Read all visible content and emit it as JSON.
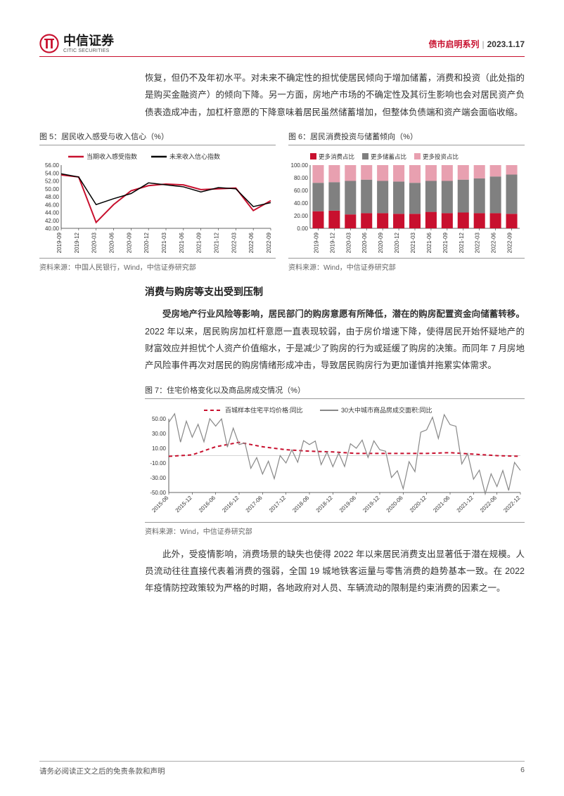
{
  "header": {
    "logo_cn": "中信证券",
    "logo_en": "CITIC SECURITIES",
    "series": "债市启明系列",
    "date": "2023.1.17"
  },
  "para1": "恢复，但仍不及年初水平。对未来不确定性的担忧使居民倾向于增加储蓄，消费和投资（此处指的是购买金融资产）的倾向下降。另一方面，房地产市场的不确定性及其衍生影响也会对居民资产负债表造成冲击，加杠杆意愿的下降意味着居民虽然储蓄增加，但整体负债端和资产端会面临收缩。",
  "chart5": {
    "title": "图 5：居民收入感受与收入信心（%）",
    "type": "line",
    "legend": [
      "当期收入感受指数",
      "未来收入信心指数"
    ],
    "legend_colors": [
      "#c8102e",
      "#000000"
    ],
    "categories": [
      "2019-09",
      "2019-12",
      "2020-03",
      "2020-06",
      "2020-09",
      "2020-12",
      "2021-03",
      "2021-06",
      "2021-09",
      "2021-12",
      "2022-03",
      "2022-06",
      "2022-09"
    ],
    "ylim": [
      40,
      56
    ],
    "ytick_step": 2,
    "series": [
      {
        "color": "#c8102e",
        "width": 2,
        "values": [
          53.5,
          53.0,
          41.5,
          46.0,
          49.5,
          50.8,
          51.2,
          51.0,
          49.8,
          50.0,
          50.2,
          44.5,
          47.0
        ]
      },
      {
        "color": "#000000",
        "width": 1.5,
        "values": [
          53.8,
          53.0,
          46.0,
          47.5,
          48.8,
          51.5,
          51.0,
          50.5,
          49.2,
          50.3,
          50.0,
          45.5,
          46.5
        ]
      }
    ],
    "background": "#ffffff",
    "axis_fontsize": 8,
    "source": "资料来源：中国人民银行，Wind，中信证券研究部"
  },
  "chart6": {
    "title": "图 6：居民消费投资与储蓄倾向（%）",
    "type": "stacked-bar",
    "legend": [
      "更多消费占比",
      "更多储蓄占比",
      "更多投资占比"
    ],
    "legend_colors": [
      "#c8102e",
      "#808080",
      "#e8a0b0"
    ],
    "categories": [
      "2019-09",
      "2019-12",
      "2020-03",
      "2020-06",
      "2020-09",
      "2020-12",
      "2021-03",
      "2021-06",
      "2021-09",
      "2021-12",
      "2022-03",
      "2022-06",
      "2022-09"
    ],
    "ylim": [
      0,
      100
    ],
    "ytick_step": 20,
    "stacks": [
      {
        "color": "#c8102e",
        "values": [
          27,
          28,
          22,
          24,
          24,
          23,
          23,
          26,
          24,
          25,
          24,
          24,
          23
        ]
      },
      {
        "color": "#808080",
        "values": [
          45,
          45,
          53,
          53,
          51,
          51,
          49,
          49,
          51,
          52,
          55,
          58,
          62
        ]
      },
      {
        "color": "#e8a0b0",
        "values": [
          28,
          27,
          25,
          23,
          25,
          26,
          28,
          25,
          25,
          23,
          21,
          18,
          15
        ]
      }
    ],
    "background": "#ffffff",
    "axis_fontsize": 8,
    "source": "资料来源：Wind，中信证券研究部"
  },
  "section2_heading": "消费与购房等支出受到压制",
  "para2_bold": "受房地产行业风险等影响，居民部门的购房意愿有所降低，潜在的购房配置资金向储蓄转移。",
  "para2_rest": "2022 年以来，居民购房加杠杆意愿一直表现较弱，由于房价增速下降，使得居民开始怀疑地产的财富效应并担忧个人资产价值缩水，于是减少了购房的行为或延缓了购房的决策。而同年 7 月房地产风险事件再次对居民的购房情绪形成冲击，导致居民购房行为更加谨慎并拖累实体需求。",
  "chart7": {
    "title": "图 7：住宅价格变化以及商品房成交情况（%）",
    "type": "line",
    "legend": [
      "百城样本住宅平均价格:同比",
      "30大中城市商品房成交面积:同比"
    ],
    "legend_colors": [
      "#c8102e",
      "#888888"
    ],
    "legend_dash": [
      "5,4",
      "0"
    ],
    "categories": [
      "2015-06",
      "2015-12",
      "2016-06",
      "2016-12",
      "2017-06",
      "2017-12",
      "2018-06",
      "2018-12",
      "2019-06",
      "2019-12",
      "2020-06",
      "2020-12",
      "2021-06",
      "2021-12",
      "2022-06",
      "2022-12"
    ],
    "ylim": [
      -50,
      50
    ],
    "ytick_step": 20,
    "series": [
      {
        "color": "#c8102e",
        "width": 2,
        "dash": "5,4",
        "values": [
          -1,
          1,
          12,
          18,
          12,
          8,
          6,
          5,
          3,
          3,
          3,
          3,
          4,
          2,
          0,
          -1
        ]
      },
      {
        "color": "#888888",
        "width": 1.2,
        "dash": "0",
        "values": [
          45,
          25,
          40,
          15,
          -25,
          -10,
          15,
          -15,
          10,
          8,
          -45,
          35,
          42,
          -32,
          -42,
          -20
        ]
      }
    ],
    "background": "#ffffff",
    "axis_fontsize": 8,
    "source": "资料来源：Wind，中信证券研究部",
    "jagged": true
  },
  "para3": "此外，受疫情影响，消费场景的缺失也使得 2022 年以来居民消费支出显著低于潜在规模。人员流动往往直接代表着消费的强弱，全国 19 城地铁客运量与零售消费的趋势基本一致。在 2022 年疫情防控政策较为严格的时期，各地政府对人员、车辆流动的限制是约束消费的因素之一。",
  "footer": {
    "disclaimer": "请务必阅读正文之后的免责条款和声明",
    "page": "6"
  }
}
